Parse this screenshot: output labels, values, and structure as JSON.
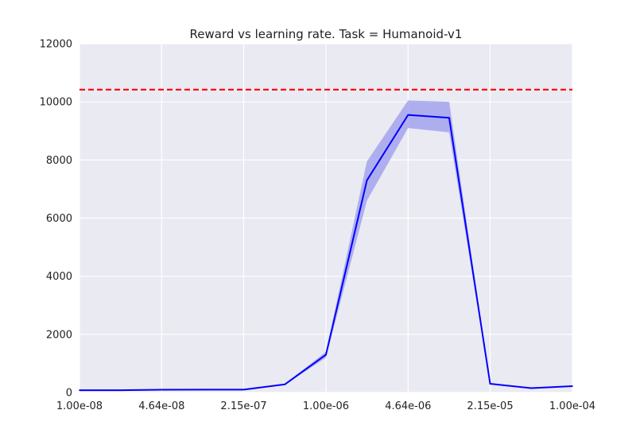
{
  "chart_data": {
    "type": "line",
    "title": "Reward vs learning rate. Task = Humanoid-v1",
    "xlabel": "",
    "ylabel": "",
    "x_scale": "log",
    "x": [
      1e-08,
      2.15e-08,
      4.64e-08,
      1e-07,
      2.15e-07,
      4.64e-07,
      1e-06,
      2.15e-06,
      4.64e-06,
      1e-05,
      2.15e-05,
      4.64e-05,
      0.0001
    ],
    "x_ticks": [
      1e-08,
      4.64e-08,
      2.15e-07,
      1e-06,
      4.64e-06,
      2.15e-05,
      0.0001
    ],
    "x_tick_labels": [
      "1.00e-08",
      "4.64e-08",
      "2.15e-07",
      "1.00e-06",
      "4.64e-06",
      "2.15e-05",
      "1.00e-04"
    ],
    "xlim": [
      1e-08,
      0.0001
    ],
    "ylim": [
      0,
      12000
    ],
    "y_ticks": [
      0,
      2000,
      4000,
      6000,
      8000,
      10000,
      12000
    ],
    "y_tick_labels": [
      "0",
      "2000",
      "4000",
      "6000",
      "8000",
      "10000",
      "12000"
    ],
    "grid": true,
    "series": [
      {
        "values": [
          80,
          80,
          95,
          100,
          100,
          280,
          1300,
          7300,
          9550,
          9450,
          300,
          150,
          220
        ],
        "lower": [
          70,
          70,
          85,
          90,
          90,
          260,
          1200,
          6600,
          9100,
          8950,
          280,
          130,
          200
        ],
        "upper": [
          90,
          90,
          105,
          110,
          110,
          300,
          1400,
          7950,
          10050,
          10000,
          320,
          170,
          240
        ],
        "color": "#0000ff",
        "band_color": "#9999ee"
      }
    ],
    "reference_line": {
      "y": 10420,
      "color": "#ff0000",
      "style": "dashed"
    },
    "background_color": "#eaeaf2",
    "grid_color": "#ffffff"
  }
}
